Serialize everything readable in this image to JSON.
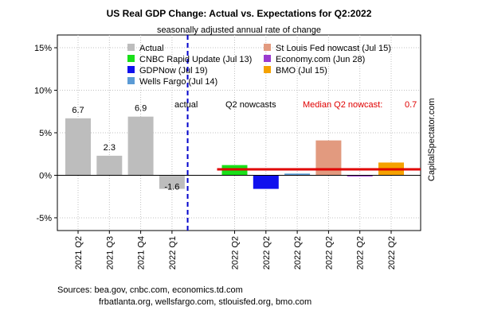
{
  "chart_data": {
    "type": "bar",
    "title": "US Real GDP Change: Actual vs. Expectations for Q2:2022",
    "subtitle": "seasonally adjusted annual rate of change",
    "ylim": [
      -6.5,
      16.5
    ],
    "yticks": [
      {
        "value": 15,
        "label": "15%"
      },
      {
        "value": 10,
        "label": "10%"
      },
      {
        "value": 5,
        "label": "5%"
      },
      {
        "value": 0,
        "label": "0%"
      },
      {
        "value": -5,
        "label": "-5%"
      }
    ],
    "grid": true,
    "actual": {
      "name": "Actual",
      "color": "#bdbdbd",
      "points": [
        {
          "category": "2021 Q2",
          "value": 6.7,
          "label": "6.7"
        },
        {
          "category": "2021 Q3",
          "value": 2.3,
          "label": "2.3"
        },
        {
          "category": "2021 Q4",
          "value": 6.9,
          "label": "6.9"
        },
        {
          "category": "2022 Q1",
          "value": -1.6,
          "label": "-1.6"
        }
      ]
    },
    "nowcasts": [
      {
        "category": "2022 Q2",
        "name": "CNBC Rapid Update (Jul 13)",
        "value": 1.2,
        "color": "#19e019"
      },
      {
        "category": "2022 Q2",
        "name": "GDPNow (Jul 19)",
        "value": -1.6,
        "color": "#1010ee"
      },
      {
        "category": "2022 Q2",
        "name": "Wells Fargo (Jul 14)",
        "value": 0.2,
        "color": "#5b9bd5"
      },
      {
        "category": "2022 Q2",
        "name": "St Louis Fed nowcast (Jul 15)",
        "value": 4.1,
        "color": "#e29a7f"
      },
      {
        "category": "2022 Q2",
        "name": "Economy.com (Jun 28)",
        "value": -0.1,
        "color": "#9b3bcf"
      },
      {
        "category": "2022 Q2",
        "name": "BMO (Jul 15)",
        "value": 1.5,
        "color": "#f5a200"
      }
    ],
    "median": {
      "label": "Median Q2 nowcast:",
      "value": 0.7,
      "value_label": "0.7",
      "color": "#e00000"
    },
    "legend": [
      {
        "name": "Actual",
        "color": "#bdbdbd"
      },
      {
        "name": "CNBC Rapid Update (Jul 13)",
        "color": "#19e019"
      },
      {
        "name": "GDPNow (Jul 19)",
        "color": "#1010ee"
      },
      {
        "name": "Wells Fargo (Jul 14)",
        "color": "#5b9bd5"
      },
      {
        "name": "St Louis Fed nowcast (Jul 15)",
        "color": "#e29a7f"
      },
      {
        "name": "Economy.com (Jun 28)",
        "color": "#9b3bcf"
      },
      {
        "name": "BMO (Jul 15)",
        "color": "#f5a200"
      }
    ],
    "annotations": {
      "actual_label": "actual",
      "nowcast_label": "Q2 nowcasts",
      "watermark": "CapitalSpectator.com",
      "divider_color": "#0000cc"
    },
    "sources": [
      "Sources: bea.gov, cnbc.com, economics.td.com",
      "frbatlanta.org, wellsfargo.com, stlouisfed.org, bmo.com"
    ]
  }
}
